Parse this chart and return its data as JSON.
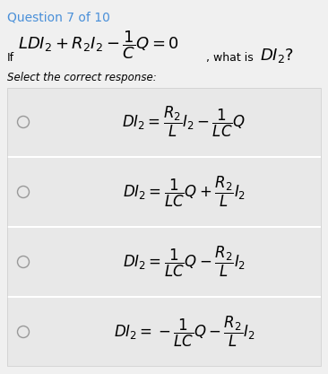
{
  "title": "Question 7 of 10",
  "title_color": "#4a90d9",
  "page_bg": "#f0f0f0",
  "white_bg": "#ffffff",
  "select_text": "Select the correct response:",
  "options": [
    "$DI_2 = \\dfrac{R_2}{L}I_2 - \\dfrac{1}{LC}Q$",
    "$DI_2 = \\dfrac{1}{LC}Q + \\dfrac{R_2}{L}I_2$",
    "$DI_2 = \\dfrac{1}{LC}Q - \\dfrac{R_2}{L}I_2$",
    "$DI_2 = -\\dfrac{1}{LC}Q - \\dfrac{R_2}{L}I_2$"
  ],
  "option_bg": "#e8e8e8",
  "option_border": "#cccccc",
  "figsize": [
    3.66,
    4.17
  ],
  "dpi": 100
}
